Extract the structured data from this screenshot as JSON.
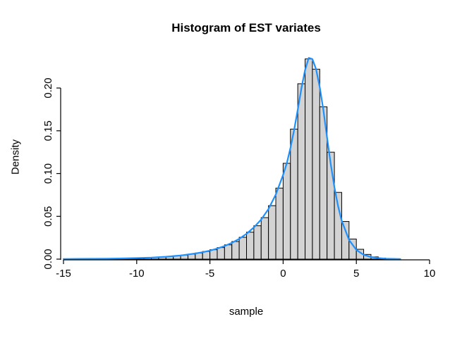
{
  "figure": {
    "title": "Histogram of EST variates",
    "xlabel": "sample",
    "ylabel": "Density",
    "background": "#ffffff"
  },
  "chart_data": {
    "type": "bar",
    "subtype": "histogram-with-density-curve",
    "title": "Histogram of EST variates",
    "xlabel": "sample",
    "ylabel": "Density",
    "grid": false,
    "legend": "none",
    "xlim": [
      -15.5,
      10.5
    ],
    "ylim": [
      0,
      0.24
    ],
    "x_tick_values": [
      -15,
      -10,
      -5,
      0,
      5,
      10
    ],
    "x_tick_labels": [
      "-15",
      "-10",
      "-5",
      "0",
      "5",
      "10"
    ],
    "y_tick_values": [
      0.0,
      0.05,
      0.1,
      0.15,
      0.2
    ],
    "y_tick_labels": [
      "0.00",
      "0.05",
      "0.10",
      "0.15",
      "0.20"
    ],
    "bar_fill": "#d3d3d3",
    "bar_stroke": "#000000",
    "curve_color": "#1e90ff",
    "axis_color": "#000000",
    "bin_width": 0.5,
    "bin_left": [
      -15.0,
      -14.5,
      -14.0,
      -13.5,
      -13.0,
      -12.5,
      -12.0,
      -11.5,
      -11.0,
      -10.5,
      -10.0,
      -9.5,
      -9.0,
      -8.5,
      -8.0,
      -7.5,
      -7.0,
      -6.5,
      -6.0,
      -5.5,
      -5.0,
      -4.5,
      -4.0,
      -3.5,
      -3.0,
      -2.5,
      -2.0,
      -1.5,
      -1.0,
      -0.5,
      0.0,
      0.5,
      1.0,
      1.5,
      2.0,
      2.5,
      3.0,
      3.5,
      4.0,
      4.5,
      5.0,
      5.5,
      6.0,
      6.5,
      7.0
    ],
    "bin_density": [
      0.0002,
      0.0002,
      0.0003,
      0.0003,
      0.0004,
      0.0005,
      0.0006,
      0.0008,
      0.0009,
      0.0011,
      0.0013,
      0.0016,
      0.002,
      0.0025,
      0.0031,
      0.0038,
      0.0047,
      0.0058,
      0.0072,
      0.0089,
      0.011,
      0.0135,
      0.0167,
      0.0206,
      0.0255,
      0.0315,
      0.039,
      0.0485,
      0.0625,
      0.083,
      0.112,
      0.152,
      0.205,
      0.234,
      0.222,
      0.178,
      0.125,
      0.078,
      0.044,
      0.0235,
      0.0115,
      0.0055,
      0.0026,
      0.0012,
      0.0005
    ],
    "density_curve": {
      "x": [
        -15,
        -14,
        -13,
        -12,
        -11,
        -10,
        -9,
        -8,
        -7,
        -6,
        -5.5,
        -5,
        -4.5,
        -4,
        -3.5,
        -3,
        -2.5,
        -2,
        -1.5,
        -1,
        -0.5,
        0,
        0.25,
        0.5,
        0.75,
        1,
        1.25,
        1.5,
        1.75,
        2,
        2.25,
        2.5,
        2.75,
        3,
        3.25,
        3.5,
        3.75,
        4,
        4.5,
        5,
        5.5,
        6,
        6.5,
        7,
        7.5,
        8
      ],
      "y": [
        0.0002,
        0.0003,
        0.0004,
        0.0005,
        0.0008,
        0.0012,
        0.0018,
        0.0028,
        0.0043,
        0.0066,
        0.0081,
        0.01,
        0.0124,
        0.0153,
        0.019,
        0.0237,
        0.0296,
        0.037,
        0.0463,
        0.0585,
        0.0755,
        0.0985,
        0.112,
        0.13,
        0.151,
        0.175,
        0.2,
        0.221,
        0.2352,
        0.2338,
        0.222,
        0.201,
        0.174,
        0.142,
        0.111,
        0.084,
        0.062,
        0.045,
        0.0225,
        0.0108,
        0.0051,
        0.0024,
        0.0012,
        0.0006,
        0.0003,
        0.00015
      ]
    }
  }
}
